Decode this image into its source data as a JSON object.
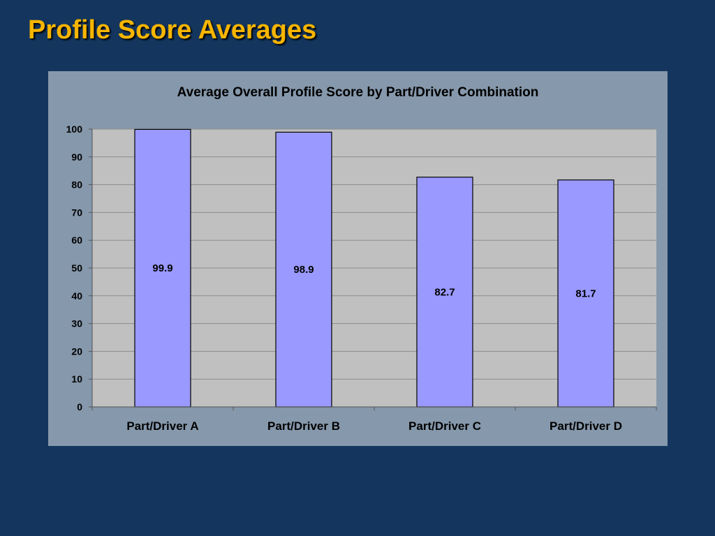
{
  "slide": {
    "title": "Profile Score Averages"
  },
  "chart_data": {
    "type": "bar",
    "title": "Average Overall Profile Score by Part/Driver Combination",
    "xlabel": "",
    "ylabel": "",
    "categories": [
      "Part/Driver A",
      "Part/Driver B",
      "Part/Driver C",
      "Part/Driver D"
    ],
    "values": [
      99.9,
      98.9,
      82.7,
      81.7
    ],
    "data_labels": [
      "99.9",
      "98.9",
      "82.7",
      "81.7"
    ],
    "ylim": [
      0,
      100
    ],
    "yticks": [
      0,
      10,
      20,
      30,
      40,
      50,
      60,
      70,
      80,
      90,
      100
    ],
    "grid": true,
    "legend": "none",
    "colors": {
      "bar": "#9999ff",
      "bar_stroke": "#000000",
      "plot_background": "#c0c0c0",
      "panel_background": "#8698ab",
      "gridline": "#8c8c8c"
    }
  }
}
